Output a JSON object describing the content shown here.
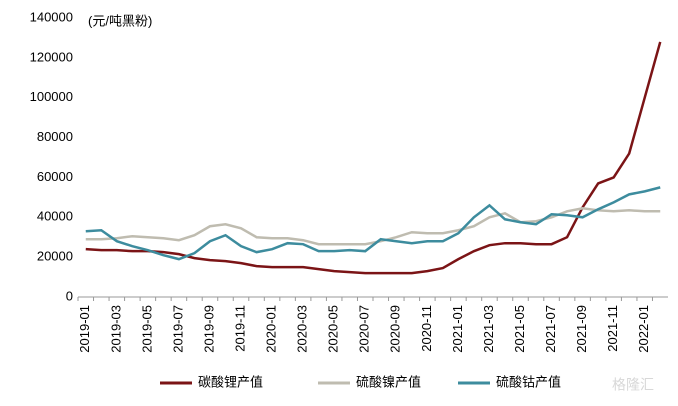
{
  "chart_data": {
    "type": "line",
    "annotation": "(元/吨黑粉)",
    "watermark": "格隆汇",
    "categories": [
      "2019-01",
      null,
      "2019-03",
      null,
      "2019-05",
      null,
      "2019-07",
      null,
      "2019-09",
      null,
      "2019-11",
      null,
      "2020-01",
      null,
      "2020-03",
      null,
      "2020-05",
      null,
      "2020-07",
      null,
      "2020-09",
      null,
      "2020-11",
      null,
      "2021-01",
      null,
      "2021-03",
      null,
      "2021-05",
      null,
      "2021-07",
      null,
      "2021-09",
      null,
      "2021-11",
      null,
      "2022-01",
      null
    ],
    "series": [
      {
        "name": "碳酸锂产值",
        "color": "#7b1416",
        "values": [
          24000,
          23500,
          23500,
          23000,
          23000,
          22500,
          21500,
          19500,
          18500,
          18000,
          17000,
          15500,
          15000,
          15000,
          15000,
          14000,
          13000,
          12500,
          12000,
          12000,
          12000,
          12000,
          13000,
          14500,
          19000,
          23000,
          26000,
          27000,
          27000,
          26500,
          26500,
          30000,
          45000,
          57000,
          60000,
          72000,
          100000,
          128000
        ]
      },
      {
        "name": "硫酸镍产值",
        "color": "#bfbcb0",
        "values": [
          29000,
          29000,
          29500,
          30500,
          30000,
          29500,
          28500,
          31000,
          35500,
          36500,
          34500,
          30000,
          29500,
          29500,
          28500,
          26500,
          26500,
          26500,
          26500,
          28000,
          30000,
          32500,
          32000,
          32000,
          33500,
          35500,
          40000,
          42000,
          37500,
          38000,
          40000,
          43000,
          44500,
          43500,
          43000,
          43500,
          43000,
          43000
        ]
      },
      {
        "name": "硫酸钴产值",
        "color": "#3d8c9e",
        "values": [
          33000,
          33500,
          28000,
          25500,
          23500,
          21000,
          19000,
          22000,
          28000,
          31000,
          25500,
          22500,
          24000,
          27000,
          26500,
          23000,
          23000,
          23500,
          23000,
          29000,
          28000,
          27000,
          28000,
          28000,
          32000,
          40000,
          46000,
          39000,
          37500,
          36500,
          41500,
          41000,
          40000,
          44000,
          47500,
          51500,
          53000,
          55000
        ]
      }
    ],
    "ylim": [
      0,
      140000
    ],
    "yticks": [
      0,
      20000,
      40000,
      60000,
      80000,
      100000,
      120000,
      140000
    ],
    "legend": "bottom"
  }
}
